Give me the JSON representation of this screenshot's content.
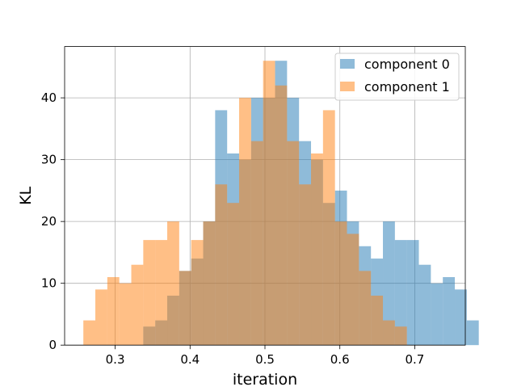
{
  "chart_data": {
    "type": "bar",
    "title": "",
    "xlabel": "iteration",
    "ylabel": "KL",
    "xlim": [
      0.2325,
      0.7675
    ],
    "ylim": [
      0,
      48.3
    ],
    "xticks": [
      0.3,
      0.4,
      0.5,
      0.6,
      0.7
    ],
    "yticks": [
      0,
      10,
      20,
      30,
      40
    ],
    "grid": true,
    "legend_position": "top-right",
    "bins": {
      "start": 0.2575,
      "width": 0.016
    },
    "series": [
      {
        "name": "component 0",
        "color": "#1f77b4",
        "alpha": 0.5,
        "start_bin": 5,
        "values": [
          3,
          4,
          8,
          12,
          14,
          20,
          38,
          31,
          30,
          40,
          40,
          46,
          40,
          33,
          30,
          23,
          25,
          20,
          16,
          14,
          20,
          17,
          17,
          13,
          10,
          11,
          9,
          4
        ]
      },
      {
        "name": "component 1",
        "color": "#ff7f0e",
        "alpha": 0.5,
        "start_bin": 0,
        "values": [
          4,
          9,
          11,
          10,
          13,
          17,
          17,
          20,
          12,
          17,
          20,
          26,
          23,
          40,
          33,
          46,
          42,
          33,
          26,
          31,
          38,
          20,
          18,
          12,
          8,
          4,
          3
        ]
      }
    ]
  }
}
